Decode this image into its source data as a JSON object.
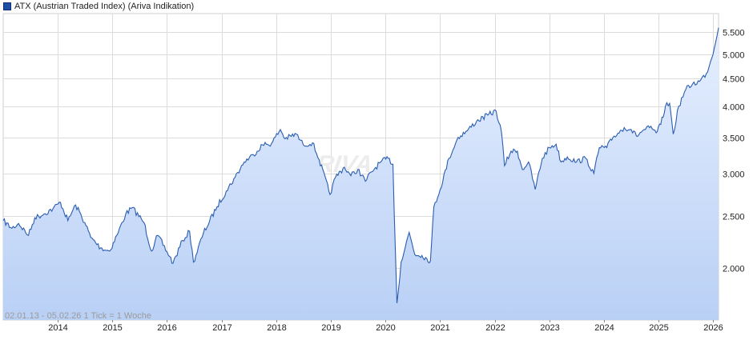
{
  "chart_data": {
    "type": "area",
    "series": [
      {
        "name": "ATX (Austrian Traded Index) (Ariva Indikation)",
        "color": "#2a5db0",
        "fill_top": "#e6efff",
        "fill_bottom": "#b9d0f5",
        "x": [
          "2013-01-02",
          "2013-03-01",
          "2013-04-15",
          "2013-06-20",
          "2013-08-01",
          "2013-10-01",
          "2013-12-01",
          "2014-01-20",
          "2014-03-10",
          "2014-05-01",
          "2014-07-01",
          "2014-08-10",
          "2014-10-15",
          "2014-12-15",
          "2015-02-01",
          "2015-04-01",
          "2015-05-15",
          "2015-08-01",
          "2015-09-20",
          "2015-11-01",
          "2016-01-20",
          "2016-02-11",
          "2016-04-15",
          "2016-06-01",
          "2016-06-27",
          "2016-09-01",
          "2016-12-01",
          "2017-02-01",
          "2017-04-01",
          "2017-06-01",
          "2017-08-01",
          "2017-10-01",
          "2017-12-01",
          "2018-01-29",
          "2018-03-01",
          "2018-05-15",
          "2018-07-01",
          "2018-09-01",
          "2018-10-15",
          "2018-12-27",
          "2019-02-01",
          "2019-04-01",
          "2019-05-15",
          "2019-07-01",
          "2019-08-20",
          "2019-10-01",
          "2019-12-01",
          "2020-01-20",
          "2020-02-20",
          "2020-03-18",
          "2020-04-15",
          "2020-06-08",
          "2020-07-15",
          "2020-09-01",
          "2020-10-28",
          "2020-11-20",
          "2021-01-01",
          "2021-03-01",
          "2021-05-01",
          "2021-07-01",
          "2021-09-01",
          "2021-11-15",
          "2022-01-10",
          "2022-02-15",
          "2022-03-07",
          "2022-04-20",
          "2022-06-01",
          "2022-07-05",
          "2022-08-15",
          "2022-09-28",
          "2022-11-15",
          "2023-01-01",
          "2023-02-15",
          "2023-03-20",
          "2023-05-01",
          "2023-07-01",
          "2023-09-01",
          "2023-10-26",
          "2023-12-01",
          "2024-01-20",
          "2024-03-01",
          "2024-05-15",
          "2024-07-01",
          "2024-08-05",
          "2024-09-15",
          "2024-11-01",
          "2024-12-15",
          "2025-01-15",
          "2025-02-15",
          "2025-03-15",
          "2025-04-08",
          "2025-05-15",
          "2025-07-01",
          "2025-08-15",
          "2025-10-01",
          "2025-11-15",
          "2025-12-20",
          "2026-02-05"
        ],
        "y": [
          2450,
          2370,
          2420,
          2300,
          2480,
          2520,
          2580,
          2650,
          2450,
          2620,
          2430,
          2280,
          2180,
          2150,
          2300,
          2520,
          2590,
          2430,
          2150,
          2300,
          2100,
          2040,
          2250,
          2340,
          2050,
          2320,
          2600,
          2780,
          2950,
          3150,
          3250,
          3390,
          3410,
          3620,
          3480,
          3550,
          3390,
          3420,
          3180,
          2740,
          2950,
          3080,
          2970,
          3050,
          2900,
          3020,
          3150,
          3200,
          3120,
          1720,
          2050,
          2330,
          2120,
          2110,
          2060,
          2600,
          2800,
          3200,
          3500,
          3600,
          3750,
          3850,
          3920,
          3580,
          3100,
          3300,
          3300,
          3050,
          3150,
          2800,
          3200,
          3350,
          3400,
          3150,
          3220,
          3150,
          3200,
          3000,
          3350,
          3350,
          3500,
          3650,
          3620,
          3520,
          3600,
          3650,
          3570,
          3700,
          4000,
          4050,
          3550,
          4000,
          4300,
          4400,
          4450,
          4600,
          4900,
          5600
        ]
      }
    ],
    "y_ticks": [
      2000,
      2500,
      3000,
      3500,
      4000,
      4500,
      5000,
      5500
    ],
    "y_tick_labels": [
      "2.000",
      "2.500",
      "3.000",
      "3.500",
      "4.000",
      "4.500",
      "5.000",
      "5.500"
    ],
    "y_scale": "log",
    "ylim": [
      1600,
      5950
    ],
    "x_ticks": [
      "2014-01-01",
      "2015-01-01",
      "2016-01-01",
      "2017-01-01",
      "2018-01-01",
      "2019-01-01",
      "2020-01-01",
      "2021-01-01",
      "2022-01-01",
      "2023-01-01",
      "2024-01-01",
      "2025-01-01",
      "2026-01-01"
    ],
    "x_tick_labels": [
      "2014",
      "2015",
      "2016",
      "2017",
      "2018",
      "2019",
      "2020",
      "2021",
      "2022",
      "2023",
      "2024",
      "2025",
      "2026"
    ],
    "xlim": [
      "2013-01-02",
      "2026-02-05"
    ],
    "grid": true,
    "legend_position": "top-left",
    "range_text": "02.01.13 - 05.02.26   1 Tick = 1 Woche",
    "watermark": "ARIVA"
  }
}
